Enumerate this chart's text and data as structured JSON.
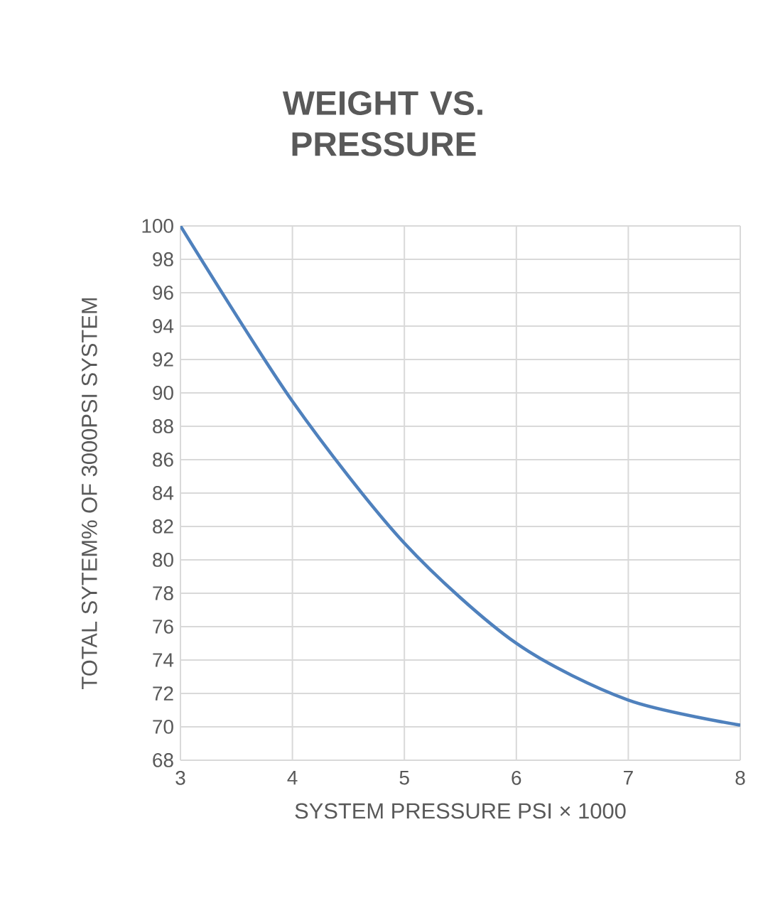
{
  "chart_data": {
    "type": "line",
    "title": "WEIGHT VS. PRESSURE",
    "xlabel": "SYSTEM PRESSURE PSI × 1000",
    "ylabel": "TOTAL SYTEM% OF 3000PSI SYSTEM",
    "x": [
      3,
      4,
      5,
      6,
      7,
      8
    ],
    "series": [
      {
        "color": "#4f81bd",
        "values": [
          100,
          89.5,
          81,
          75,
          71.6,
          70.1
        ]
      }
    ],
    "xlim": [
      3,
      8
    ],
    "ylim": [
      68,
      100
    ],
    "xticks": [
      3,
      4,
      5,
      6,
      7,
      8
    ],
    "yticks": [
      68,
      70,
      72,
      74,
      76,
      78,
      80,
      82,
      84,
      86,
      88,
      90,
      92,
      94,
      96,
      98,
      100
    ],
    "grid": true,
    "marker": "none"
  }
}
